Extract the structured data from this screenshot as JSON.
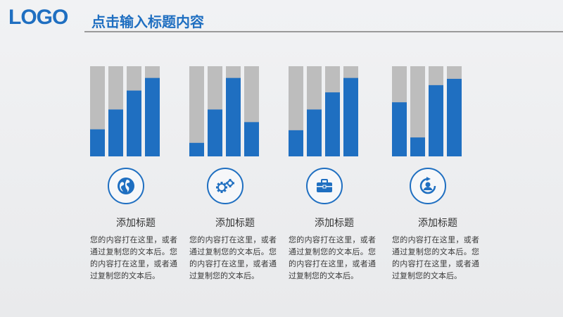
{
  "header": {
    "logo": "LOGO",
    "title": "点击输入标题内容"
  },
  "colors": {
    "accent": "#1f6fc1",
    "bar_background": "#bdbdbd",
    "rule": "#9a9a9a"
  },
  "cards": [
    {
      "title": "添加标题",
      "body": "您的内容打在这里，或者通过复制您的文本后。您的内容打在这里，或者通过复制您的文本后。",
      "icon": "globe-icon"
    },
    {
      "title": "添加标题",
      "body": "您的内容打在这里，或者通过复制您的文本后。您的内容打在这里，或者通过复制您的文本后。",
      "icon": "gears-icon"
    },
    {
      "title": "添加标题",
      "body": "您的内容打在这里，或者通过复制您的文本后。您的内容打在这里，或者通过复制您的文本后。",
      "icon": "briefcase-icon"
    },
    {
      "title": "添加标题",
      "body": "您的内容打在这里，或者通过复制您的文本后。您的内容打在这里，或者通过复制您的文本后。",
      "icon": "user-refresh-icon"
    }
  ],
  "chart_data": [
    {
      "type": "bar",
      "values": [
        30,
        52,
        73,
        87
      ],
      "ylim": [
        0,
        100
      ]
    },
    {
      "type": "bar",
      "values": [
        15,
        52,
        87,
        38
      ],
      "ylim": [
        0,
        100
      ]
    },
    {
      "type": "bar",
      "values": [
        29,
        52,
        71,
        87
      ],
      "ylim": [
        0,
        100
      ]
    },
    {
      "type": "bar",
      "values": [
        60,
        21,
        79,
        86
      ],
      "ylim": [
        0,
        100
      ]
    }
  ]
}
